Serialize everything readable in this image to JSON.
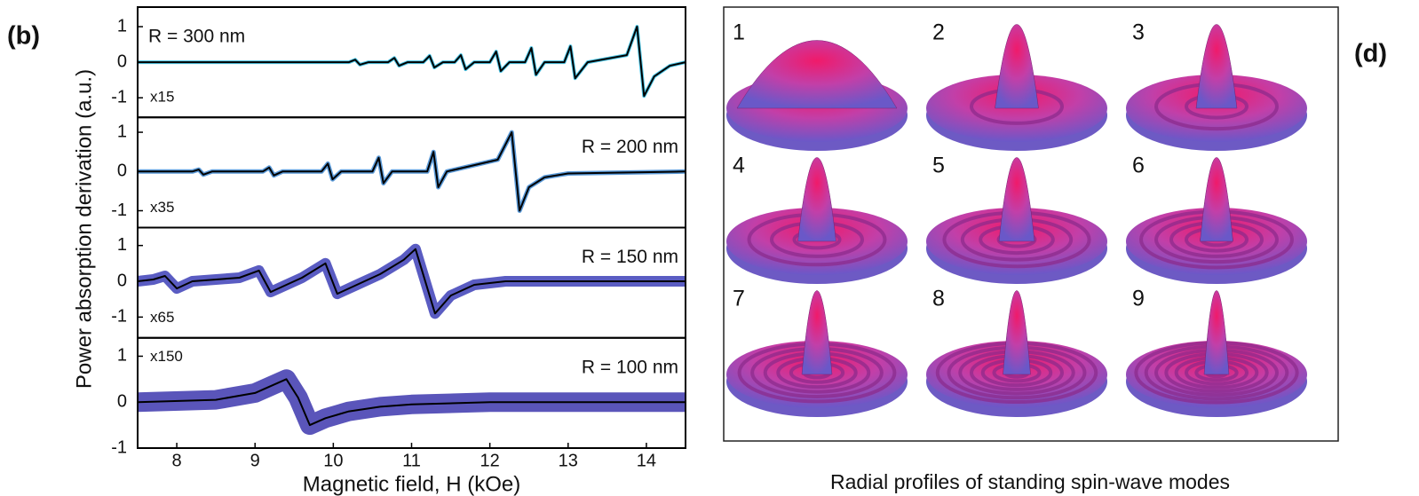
{
  "figure": {
    "panel_label": "(b)",
    "y_label": "Power absorption derivation (a.u.)"
  },
  "chart_data": [
    {
      "type": "line",
      "label": "R = 300 nm",
      "scale": "x15",
      "fit_color": "#000000",
      "xlim": [
        7.5,
        14.5
      ],
      "ylim": [
        -1.55,
        1.55
      ],
      "yticks": [
        -1,
        0,
        1
      ],
      "x": [
        7.5,
        10.2,
        10.28,
        10.34,
        10.45,
        10.7,
        10.78,
        10.84,
        10.95,
        11.15,
        11.23,
        11.29,
        11.4,
        11.55,
        11.63,
        11.69,
        11.8,
        12.0,
        12.08,
        12.14,
        12.25,
        12.45,
        12.53,
        12.59,
        12.7,
        12.95,
        13.03,
        13.09,
        13.25,
        13.75,
        13.88,
        13.97,
        14.1,
        14.3,
        14.5
      ],
      "series": [
        {
          "color": "#4cc4e4",
          "values": [
            0,
            0,
            0.07,
            -0.07,
            0,
            0,
            0.12,
            -0.1,
            0,
            0,
            0.18,
            -0.15,
            0,
            0,
            0.2,
            -0.2,
            0,
            0,
            0.3,
            -0.25,
            0,
            0,
            0.4,
            -0.35,
            0,
            0,
            0.45,
            -0.45,
            0,
            0.2,
            1.0,
            -0.95,
            -0.4,
            -0.1,
            0
          ]
        }
      ]
    },
    {
      "type": "line",
      "label": "R = 200 nm",
      "scale": "x35",
      "fit_color": "#000000",
      "xlim": [
        7.5,
        14.5
      ],
      "ylim": [
        -1.43,
        1.38
      ],
      "yticks": [
        -1,
        0,
        1
      ],
      "x": [
        7.5,
        8.2,
        8.28,
        8.34,
        8.45,
        9.1,
        9.18,
        9.24,
        9.35,
        9.85,
        9.93,
        9.99,
        10.1,
        10.5,
        10.58,
        10.64,
        10.75,
        11.2,
        11.28,
        11.34,
        11.45,
        12.1,
        12.28,
        12.38,
        12.5,
        12.7,
        13.0,
        14.5
      ],
      "series": [
        {
          "color": "#5b9ad8",
          "values": [
            0,
            0,
            0.05,
            -0.08,
            0,
            0,
            0.1,
            -0.1,
            0,
            0,
            0.2,
            -0.2,
            0,
            0,
            0.35,
            -0.3,
            0,
            0,
            0.5,
            -0.4,
            0,
            0.3,
            1.0,
            -1.0,
            -0.4,
            -0.15,
            -0.05,
            0
          ]
        }
      ]
    },
    {
      "type": "line",
      "label": "R = 150 nm",
      "scale": "x65",
      "fit_color": "#000000",
      "xlim": [
        7.5,
        14.5
      ],
      "ylim": [
        -1.58,
        1.5
      ],
      "yticks": [
        -1,
        0,
        1
      ],
      "x": [
        7.5,
        7.7,
        7.85,
        8.0,
        8.2,
        8.8,
        9.05,
        9.2,
        9.4,
        9.6,
        9.9,
        10.05,
        10.3,
        10.6,
        10.9,
        11.05,
        11.3,
        11.5,
        11.8,
        12.2,
        14.5
      ],
      "series": [
        {
          "color": "#5a5cc2",
          "values": [
            0,
            0.05,
            0.15,
            -0.2,
            0,
            0.1,
            0.3,
            -0.3,
            -0.1,
            0.1,
            0.5,
            -0.35,
            -0.1,
            0.2,
            0.6,
            0.9,
            -0.9,
            -0.4,
            -0.1,
            0,
            0
          ]
        }
      ]
    },
    {
      "type": "line",
      "label": "R = 100 nm",
      "scale": "x150",
      "fit_color": "#000000",
      "xlim": [
        7.5,
        14.5
      ],
      "ylim": [
        -1,
        1.4
      ],
      "yticks": [
        -1,
        0,
        1
      ],
      "xticks": [
        8,
        9,
        10,
        11,
        12,
        13,
        14
      ],
      "x_label": "Magnetic field, H (kOe)",
      "x": [
        7.5,
        8.5,
        9.0,
        9.4,
        9.55,
        9.7,
        9.9,
        10.2,
        10.6,
        11.0,
        12,
        14.5
      ],
      "series": [
        {
          "color": "#5a55ba",
          "values": [
            0,
            0.05,
            0.2,
            0.5,
            0.1,
            -0.5,
            -0.35,
            -0.2,
            -0.1,
            -0.05,
            0,
            0
          ]
        }
      ]
    }
  ],
  "modes": {
    "panel_label": "(d)",
    "labels": [
      "1",
      "2",
      "3",
      "4",
      "5",
      "6",
      "7",
      "8",
      "9"
    ],
    "caption": "Radial profiles of standing spin-wave modes"
  }
}
